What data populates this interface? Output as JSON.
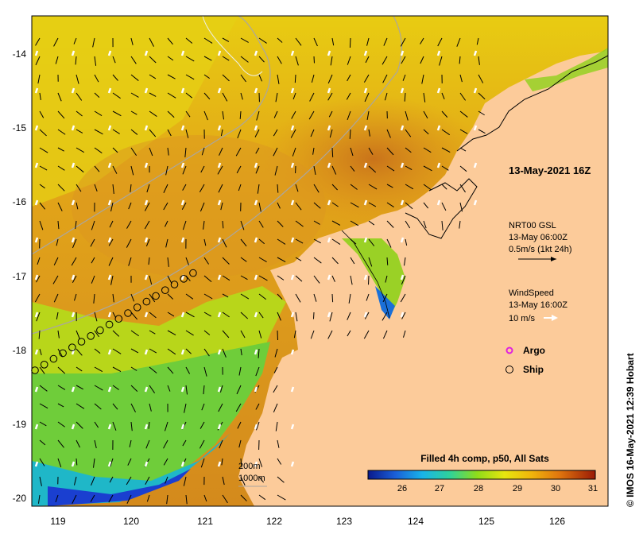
{
  "map": {
    "date_label": "13-May-2021 16Z",
    "lon_ticks": [
      "119",
      "120",
      "121",
      "122",
      "123",
      "124",
      "125",
      "126"
    ],
    "lat_ticks": [
      "-14",
      "-15",
      "-16",
      "-17",
      "-18",
      "-19",
      "-20"
    ],
    "current_legend": {
      "line1": "NRT00 GSL",
      "line2": "13-May 06:00Z",
      "line3": "0.5m/s (1kt 24h)"
    },
    "wind_legend": {
      "line1": "WindSpeed",
      "line2": "13-May 16:00Z",
      "line3": "10 m/s"
    },
    "markers": {
      "argo_label": "Argo",
      "ship_label": "Ship"
    },
    "contours": {
      "c200": "200m",
      "c1000": "1000m"
    },
    "colorbar": {
      "title": "Filled 4h comp, p50, All Sats",
      "labels": [
        "26",
        "27",
        "28",
        "29",
        "30",
        "31"
      ]
    },
    "credit": "© IMOS 16-May-2021 12:39 Hobart",
    "colors": {
      "land": "#fccb9a",
      "sst_warm": "#d9891e",
      "sst_mid": "#e8b40e",
      "sst_cool": "#8fd11a",
      "sst_cold": "#1a2fc4",
      "argo": "#e020e0"
    }
  }
}
